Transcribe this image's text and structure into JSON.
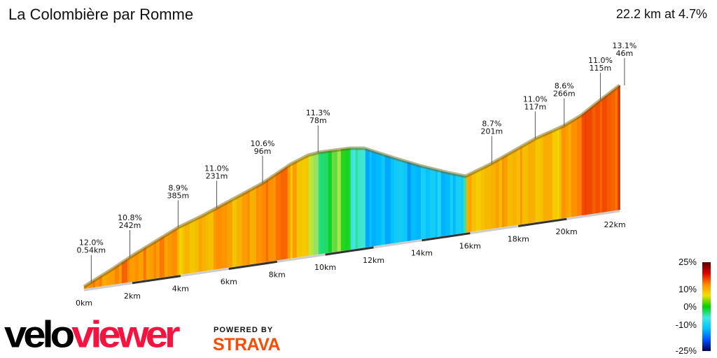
{
  "title": "La Colombière par Romme",
  "summary": "22.2 km at 4.7%",
  "chart_data": {
    "type": "area",
    "title": "La Colombière par Romme",
    "total_distance_km": 22.2,
    "average_grade_pct": 4.7,
    "x_ticks": [
      {
        "km": 0,
        "label": "0km"
      },
      {
        "km": 2,
        "label": "2km"
      },
      {
        "km": 4,
        "label": "4km"
      },
      {
        "km": 6,
        "label": "6km"
      },
      {
        "km": 8,
        "label": "8km"
      },
      {
        "km": 10,
        "label": "10km"
      },
      {
        "km": 12,
        "label": "12km"
      },
      {
        "km": 14,
        "label": "14km"
      },
      {
        "km": 16,
        "label": "16km"
      },
      {
        "km": 18,
        "label": "18km"
      },
      {
        "km": 20,
        "label": "20km"
      },
      {
        "km": 22,
        "label": "22km"
      }
    ],
    "annotations": [
      {
        "km": 0.3,
        "grade": "12.0%",
        "length": "0.54km"
      },
      {
        "km": 1.9,
        "grade": "10.8%",
        "length": "242m"
      },
      {
        "km": 3.9,
        "grade": "8.9%",
        "length": "385m"
      },
      {
        "km": 5.5,
        "grade": "11.0%",
        "length": "231m"
      },
      {
        "km": 7.4,
        "grade": "10.6%",
        "length": "96m"
      },
      {
        "km": 9.7,
        "grade": "11.3%",
        "length": "78m"
      },
      {
        "km": 16.9,
        "grade": "8.7%",
        "length": "201m"
      },
      {
        "km": 18.7,
        "grade": "11.0%",
        "length": "117m"
      },
      {
        "km": 19.9,
        "grade": "8.6%",
        "length": "266m"
      },
      {
        "km": 21.4,
        "grade": "11.0%",
        "length": "115m"
      },
      {
        "km": 22.4,
        "grade": "13.1%",
        "length": "46m"
      }
    ],
    "legend": {
      "labels": [
        "25%",
        "10%",
        "0%",
        "-10%",
        "-25%"
      ],
      "colors": [
        "#5a0000",
        "#e00000",
        "#ff8c00",
        "#f0e000",
        "#00d000",
        "#40e8e0",
        "#00c0ff",
        "#0050ff",
        "#000050"
      ]
    }
  },
  "logo": {
    "velo": "velo",
    "viewer": "viewer",
    "powered_by": "POWERED BY",
    "strava": "STRAVA"
  },
  "colors": {
    "strava": "#fc4c02",
    "viewer": "#f5133f"
  }
}
